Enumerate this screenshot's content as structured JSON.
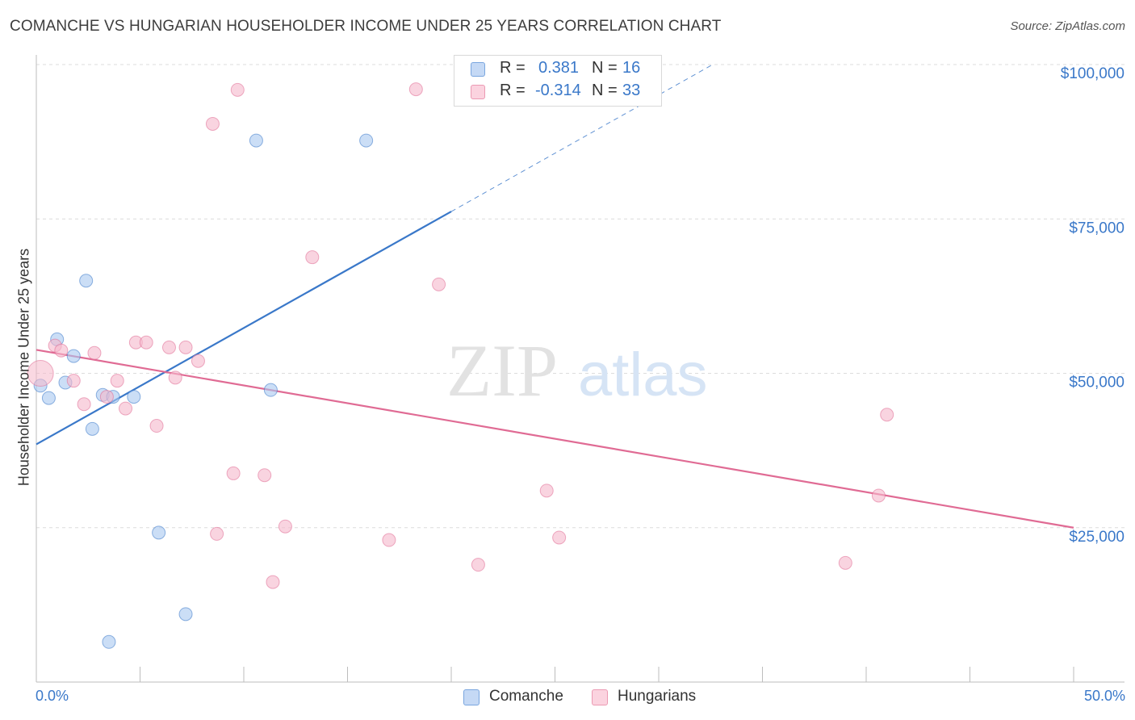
{
  "header": {
    "title": "COMANCHE VS HUNGARIAN HOUSEHOLDER INCOME UNDER 25 YEARS CORRELATION CHART",
    "source": "Source: ZipAtlas.com"
  },
  "watermark": {
    "zip": "ZIP",
    "atlas": "atlas"
  },
  "legend": {
    "rows": [
      {
        "r_label": "R =",
        "r_value": "0.381",
        "n_label": "N =",
        "n_value": "16",
        "color": "#a8c8f0"
      },
      {
        "r_label": "R =",
        "r_value": "-0.314",
        "n_label": "N =",
        "n_value": "33",
        "color": "#f5b8cb"
      }
    ]
  },
  "bottom_legend": [
    {
      "label": "Comanche",
      "color": "#a8c8f0"
    },
    {
      "label": "Hungarians",
      "color": "#f5b8cb"
    }
  ],
  "chart_data": {
    "type": "scatter",
    "title": "COMANCHE VS HUNGARIAN HOUSEHOLDER INCOME UNDER 25 YEARS CORRELATION CHART",
    "xlabel": "",
    "ylabel": "Householder Income Under 25 years",
    "xlim": [
      0,
      50
    ],
    "ylim": [
      0,
      100000
    ],
    "x_tick_labels": [
      "0.0%",
      "50.0%"
    ],
    "y_ticks": [
      25000,
      50000,
      75000,
      100000
    ],
    "y_tick_labels": [
      "$25,000",
      "$50,000",
      "$75,000",
      "$100,000"
    ],
    "grid": true,
    "series": [
      {
        "name": "Comanche",
        "color": "#a8c8f0",
        "stroke": "#3a78c9",
        "points": [
          [
            0.2,
            48000
          ],
          [
            0.6,
            46000
          ],
          [
            1.0,
            55500
          ],
          [
            1.4,
            48500
          ],
          [
            1.8,
            52800
          ],
          [
            2.4,
            65000
          ],
          [
            2.7,
            41000
          ],
          [
            3.2,
            46500
          ],
          [
            3.7,
            46200
          ],
          [
            4.7,
            46200
          ],
          [
            5.9,
            24200
          ],
          [
            7.2,
            11000
          ],
          [
            3.5,
            6500
          ],
          [
            10.6,
            87700
          ],
          [
            11.3,
            47300
          ],
          [
            15.9,
            87700
          ]
        ],
        "trend": {
          "x0": 0,
          "y0": 38500,
          "x1": 20,
          "y1": 76200,
          "dash_x1": 32.6,
          "dash_y1": 100000
        }
      },
      {
        "name": "Hungarians",
        "color": "#f5b8cb",
        "stroke": "#e06b94",
        "points": [
          [
            0.2,
            50000
          ],
          [
            0.9,
            54500
          ],
          [
            1.2,
            53700
          ],
          [
            1.8,
            48800
          ],
          [
            2.3,
            45000
          ],
          [
            2.8,
            53300
          ],
          [
            3.4,
            46200
          ],
          [
            3.9,
            48800
          ],
          [
            4.3,
            44300
          ],
          [
            4.8,
            55000
          ],
          [
            5.3,
            55000
          ],
          [
            5.8,
            41500
          ],
          [
            6.4,
            54200
          ],
          [
            6.7,
            49300
          ],
          [
            7.2,
            54200
          ],
          [
            7.8,
            52000
          ],
          [
            8.5,
            90400
          ],
          [
            8.7,
            24000
          ],
          [
            9.5,
            33800
          ],
          [
            9.7,
            95900
          ],
          [
            11.0,
            33500
          ],
          [
            11.4,
            16200
          ],
          [
            12.0,
            25200
          ],
          [
            13.3,
            68800
          ],
          [
            17.0,
            23000
          ],
          [
            18.3,
            96000
          ],
          [
            19.4,
            64400
          ],
          [
            21.3,
            19000
          ],
          [
            24.6,
            31000
          ],
          [
            25.2,
            23400
          ],
          [
            39.0,
            19300
          ],
          [
            40.6,
            30200
          ],
          [
            41.0,
            43300
          ]
        ],
        "trend": {
          "x0": 0,
          "y0": 53800,
          "x1": 50,
          "y1": 25000
        }
      }
    ]
  }
}
